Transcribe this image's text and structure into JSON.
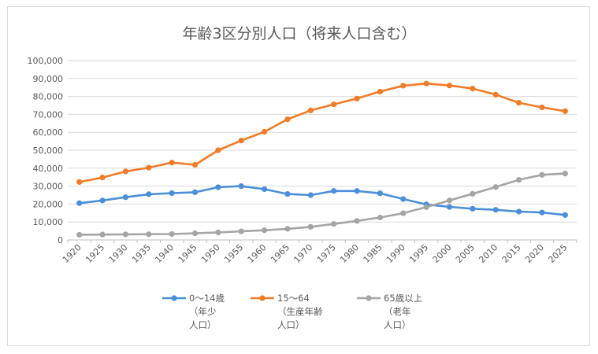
{
  "chart_data": {
    "type": "line",
    "title": "年齢3区分別人口（将来人口含む）",
    "xlabel": "",
    "ylabel": "",
    "ylim": [
      0,
      100000
    ],
    "yticks": [
      "0",
      "10,000",
      "20,000",
      "30,000",
      "40,000",
      "50,000",
      "60,000",
      "70,000",
      "80,000",
      "90,000",
      "100,000"
    ],
    "categories": [
      "1920",
      "1925",
      "1930",
      "1935",
      "1940",
      "1945",
      "1950",
      "1955",
      "1960",
      "1965",
      "1970",
      "1975",
      "1980",
      "1985",
      "1990",
      "1995",
      "2000",
      "2005",
      "2010",
      "2015",
      "2020",
      "2025"
    ],
    "grid": true,
    "legend_position": "bottom",
    "series": [
      {
        "name": "0～14歳（年少人口）",
        "legend_lines": [
          "0～14歳",
          "（年少",
          "人口）"
        ],
        "color": "#4a8fd8",
        "values": [
          20500,
          22000,
          23800,
          25500,
          26100,
          26600,
          29400,
          30000,
          28300,
          25600,
          25000,
          27300,
          27300,
          26000,
          22800,
          19800,
          18400,
          17400,
          16800,
          15800,
          15300,
          13900
        ]
      },
      {
        "name": "15～64（生産年齢人口）",
        "legend_lines": [
          "15～64",
          "（生産年齢",
          "人口）"
        ],
        "color": "#f07b28",
        "values": [
          32300,
          34800,
          38200,
          40300,
          43100,
          41900,
          50000,
          55400,
          60300,
          67300,
          72200,
          75600,
          78800,
          82700,
          86000,
          87200,
          86100,
          84400,
          81000,
          76500,
          73900,
          71800
        ]
      },
      {
        "name": "65歳以上（老年人口）",
        "legend_lines": [
          "65歳以上",
          "（老年",
          "人口）"
        ],
        "color": "#a5a5a5",
        "values": [
          2900,
          3000,
          3100,
          3200,
          3300,
          3700,
          4200,
          4800,
          5400,
          6200,
          7300,
          8900,
          10600,
          12500,
          14900,
          18300,
          22000,
          25700,
          29500,
          33500,
          36300,
          37000
        ]
      }
    ]
  }
}
